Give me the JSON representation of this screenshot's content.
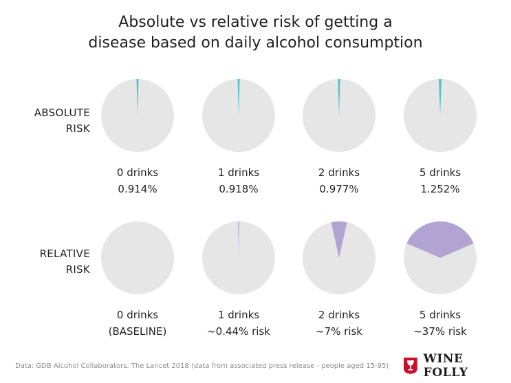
{
  "title_line1": "Absolute vs relative risk of getting a",
  "title_line2": "disease based on daily alcohol consumption",
  "rows": [
    {
      "label_line1": "ABSOLUTE",
      "label_line2": "RISK"
    },
    {
      "label_line1": "RELATIVE",
      "label_line2": "RISK"
    }
  ],
  "source": "Data: GDB Alcohol Collaborators. The Lancet 2018 (data from associated press release - people aged 15-95)",
  "logo": {
    "text": "WINE FOLLY",
    "icon": "wine-glass-badge-icon"
  },
  "colors": {
    "pie_bg": "#e6e6e6",
    "absolute": "#56c1cc",
    "relative": "#b2a4d2"
  },
  "chart_data": [
    {
      "type": "pie",
      "categories": [
        "0 drinks",
        "1 drinks",
        "2 drinks",
        "5 drinks"
      ],
      "values": [
        0.914,
        0.918,
        0.977,
        1.252
      ],
      "unit": "%",
      "captions": [
        [
          "0 drinks",
          "0.914%"
        ],
        [
          "1 drinks",
          "0.918%"
        ],
        [
          "2 drinks",
          "0.977%"
        ],
        [
          "5 drinks",
          "1.252%"
        ]
      ]
    },
    {
      "type": "pie",
      "categories": [
        "0 drinks",
        "1 drinks",
        "2 drinks",
        "5 drinks"
      ],
      "values": [
        0,
        0.44,
        7,
        37
      ],
      "unit": "%",
      "captions": [
        [
          "0 drinks",
          "(BASELINE)"
        ],
        [
          "1 drinks",
          "~0.44% risk"
        ],
        [
          "2 drinks",
          "~7% risk"
        ],
        [
          "5 drinks",
          "~37% risk"
        ]
      ]
    }
  ]
}
